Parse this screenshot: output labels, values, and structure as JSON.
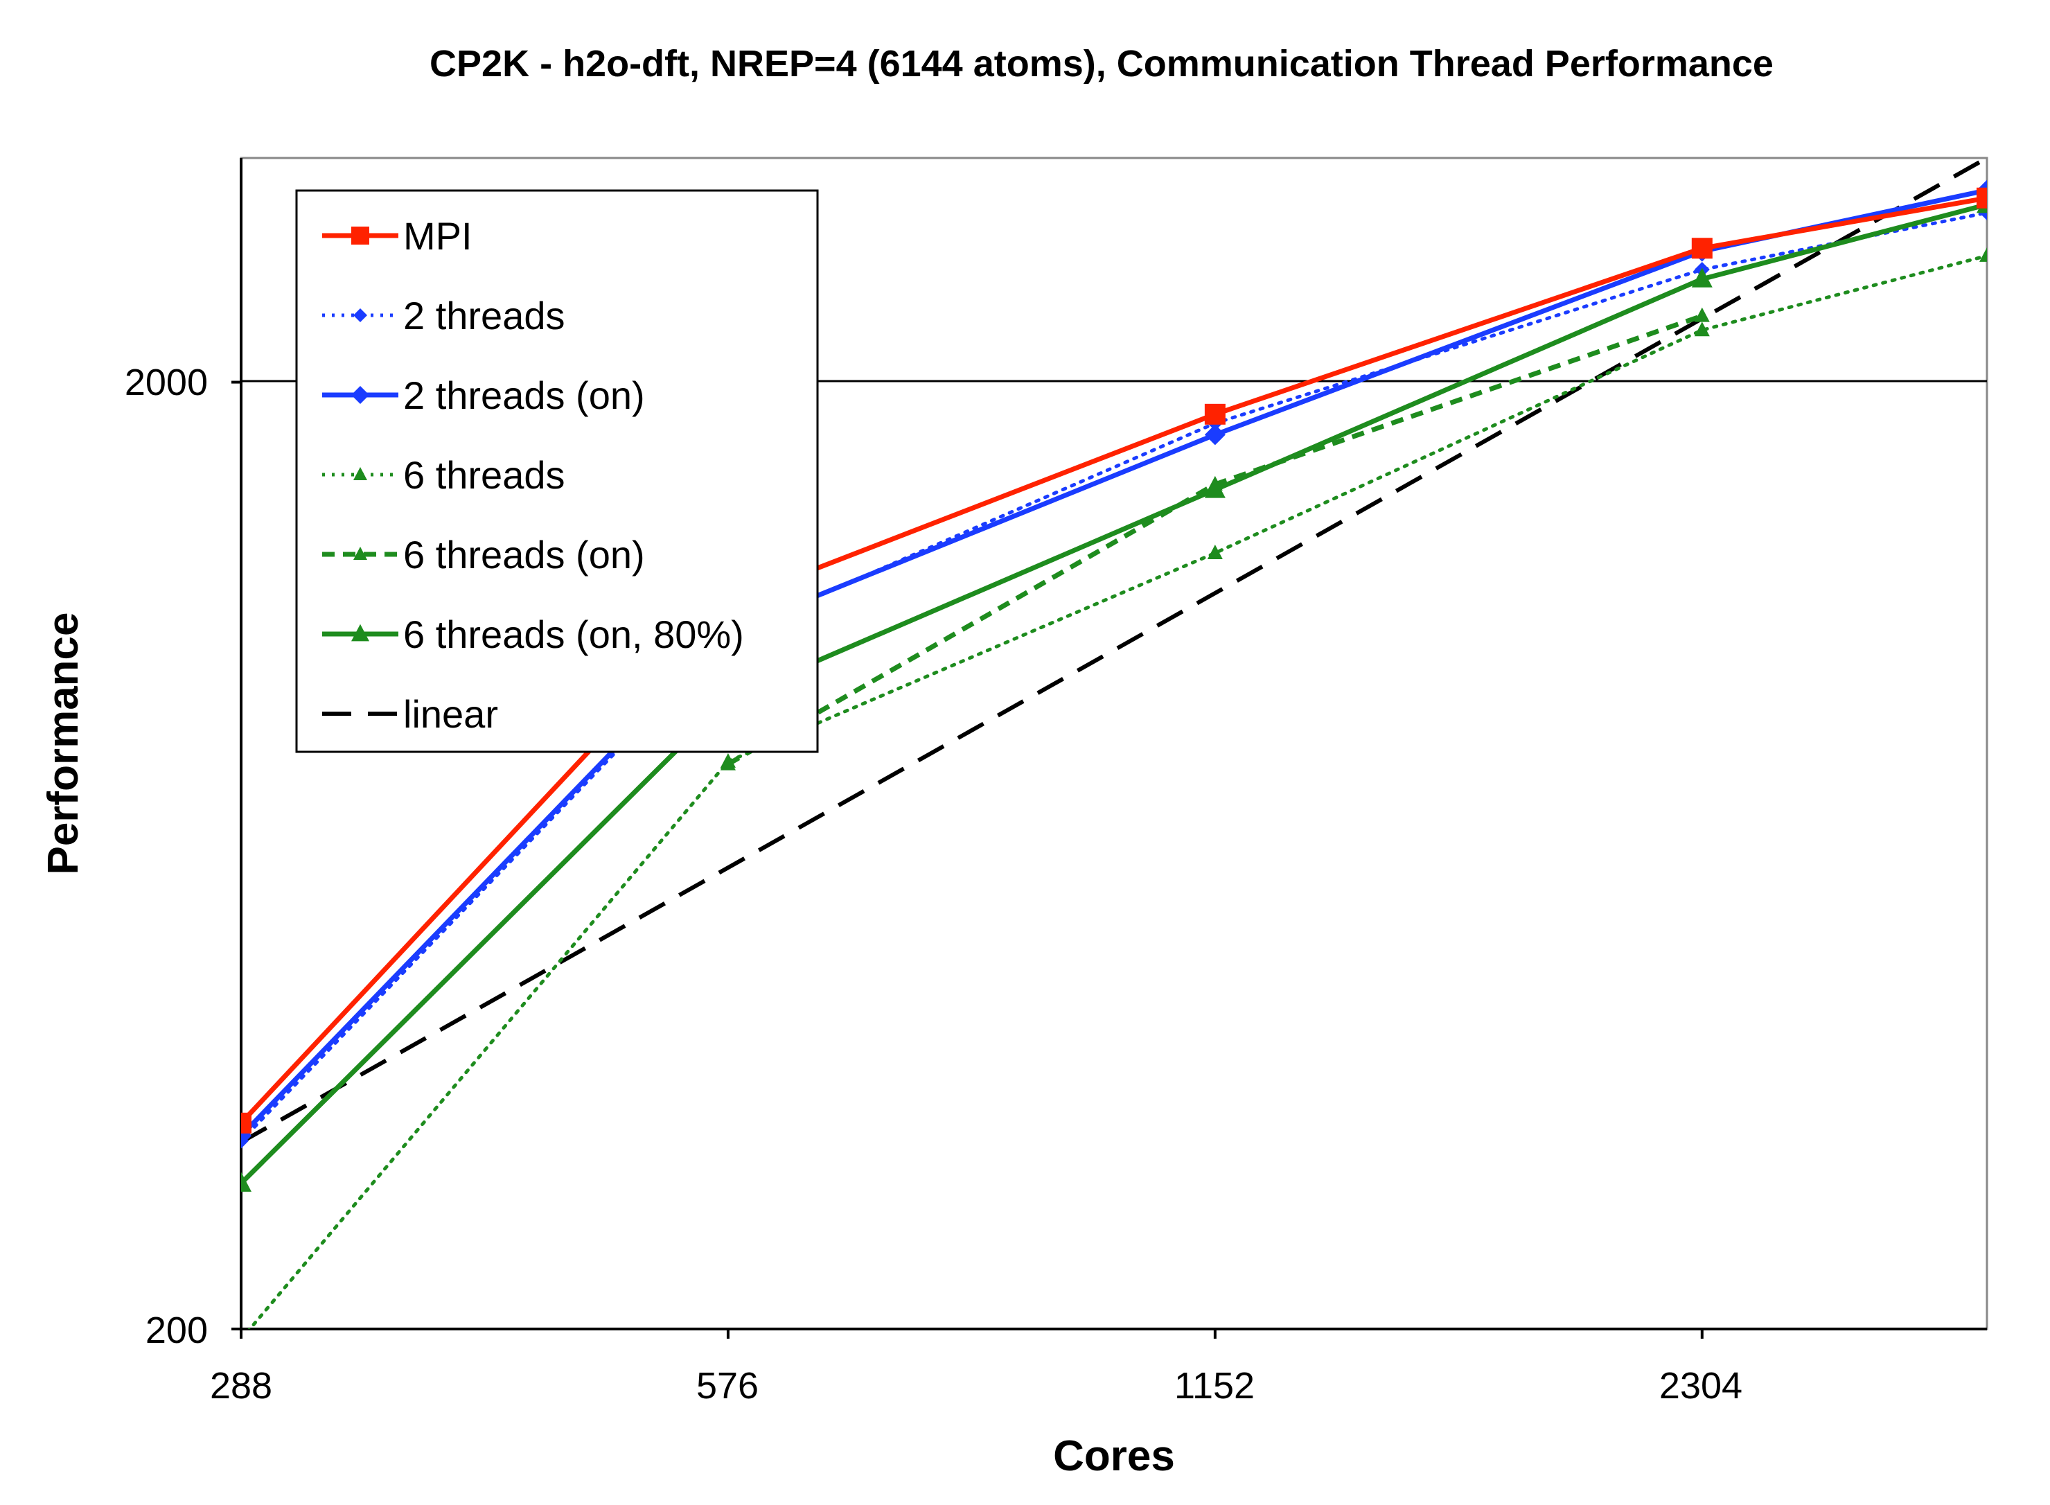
{
  "chart_data": {
    "type": "line",
    "title": "CP2K - h2o-dft, NREP=4 (6144 atoms), Communication Thread Performance",
    "xlabel": "Cores",
    "ylabel": "Performance",
    "x_scale": "log2",
    "y_scale": "log10",
    "x_ticks": [
      "288",
      "576",
      "1152",
      "2304"
    ],
    "y_ticks": [
      "200",
      "2000"
    ],
    "xlim": [
      288,
      3456
    ],
    "ylim": [
      200,
      3450
    ],
    "grid": "horizontal line at 2000",
    "legend_position": "top-left",
    "series": [
      {
        "name": "MPI",
        "color": "#ff2200",
        "style": "solid",
        "marker": "square",
        "x": [
          288,
          576,
          1152,
          2304,
          3456
        ],
        "y": [
          330,
          1170,
          1850,
          2770,
          3130
        ]
      },
      {
        "name": "2 threads",
        "color": "#1a3cff",
        "style": "dotted",
        "marker": "diamond",
        "x": [
          288,
          576,
          1152,
          2304,
          3456
        ],
        "y": [
          316,
          1080,
          1810,
          2630,
          3020
        ]
      },
      {
        "name": "2 threads (on)",
        "color": "#1a3cff",
        "style": "solid",
        "marker": "diamond",
        "x": [
          288,
          576,
          1152,
          2304,
          3456
        ],
        "y": [
          320,
          1090,
          1760,
          2750,
          3190
        ]
      },
      {
        "name": "6 threads",
        "color": "#1e8c1e",
        "style": "dotted",
        "marker": "triangle",
        "x": [
          288,
          576,
          1152,
          2304,
          3456
        ],
        "y": [
          195,
          795,
          1320,
          2270,
          2720
        ]
      },
      {
        "name": "6 threads (on)",
        "color": "#1e8c1e",
        "style": "dashed",
        "marker": "triangle",
        "x": [
          576,
          1152,
          2304
        ],
        "y": [
          790,
          1560,
          2350
        ]
      },
      {
        "name": "6 threads (on, 80%)",
        "color": "#1e8c1e",
        "style": "solid",
        "marker": "triangle",
        "x": [
          288,
          576,
          1152,
          2304,
          3456
        ],
        "y": [
          285,
          925,
          1540,
          2570,
          3080
        ]
      },
      {
        "name": "linear",
        "color": "#000000",
        "style": "longdash",
        "marker": "none",
        "x": [
          288,
          3456
        ],
        "y": [
          315,
          3450
        ]
      }
    ]
  }
}
